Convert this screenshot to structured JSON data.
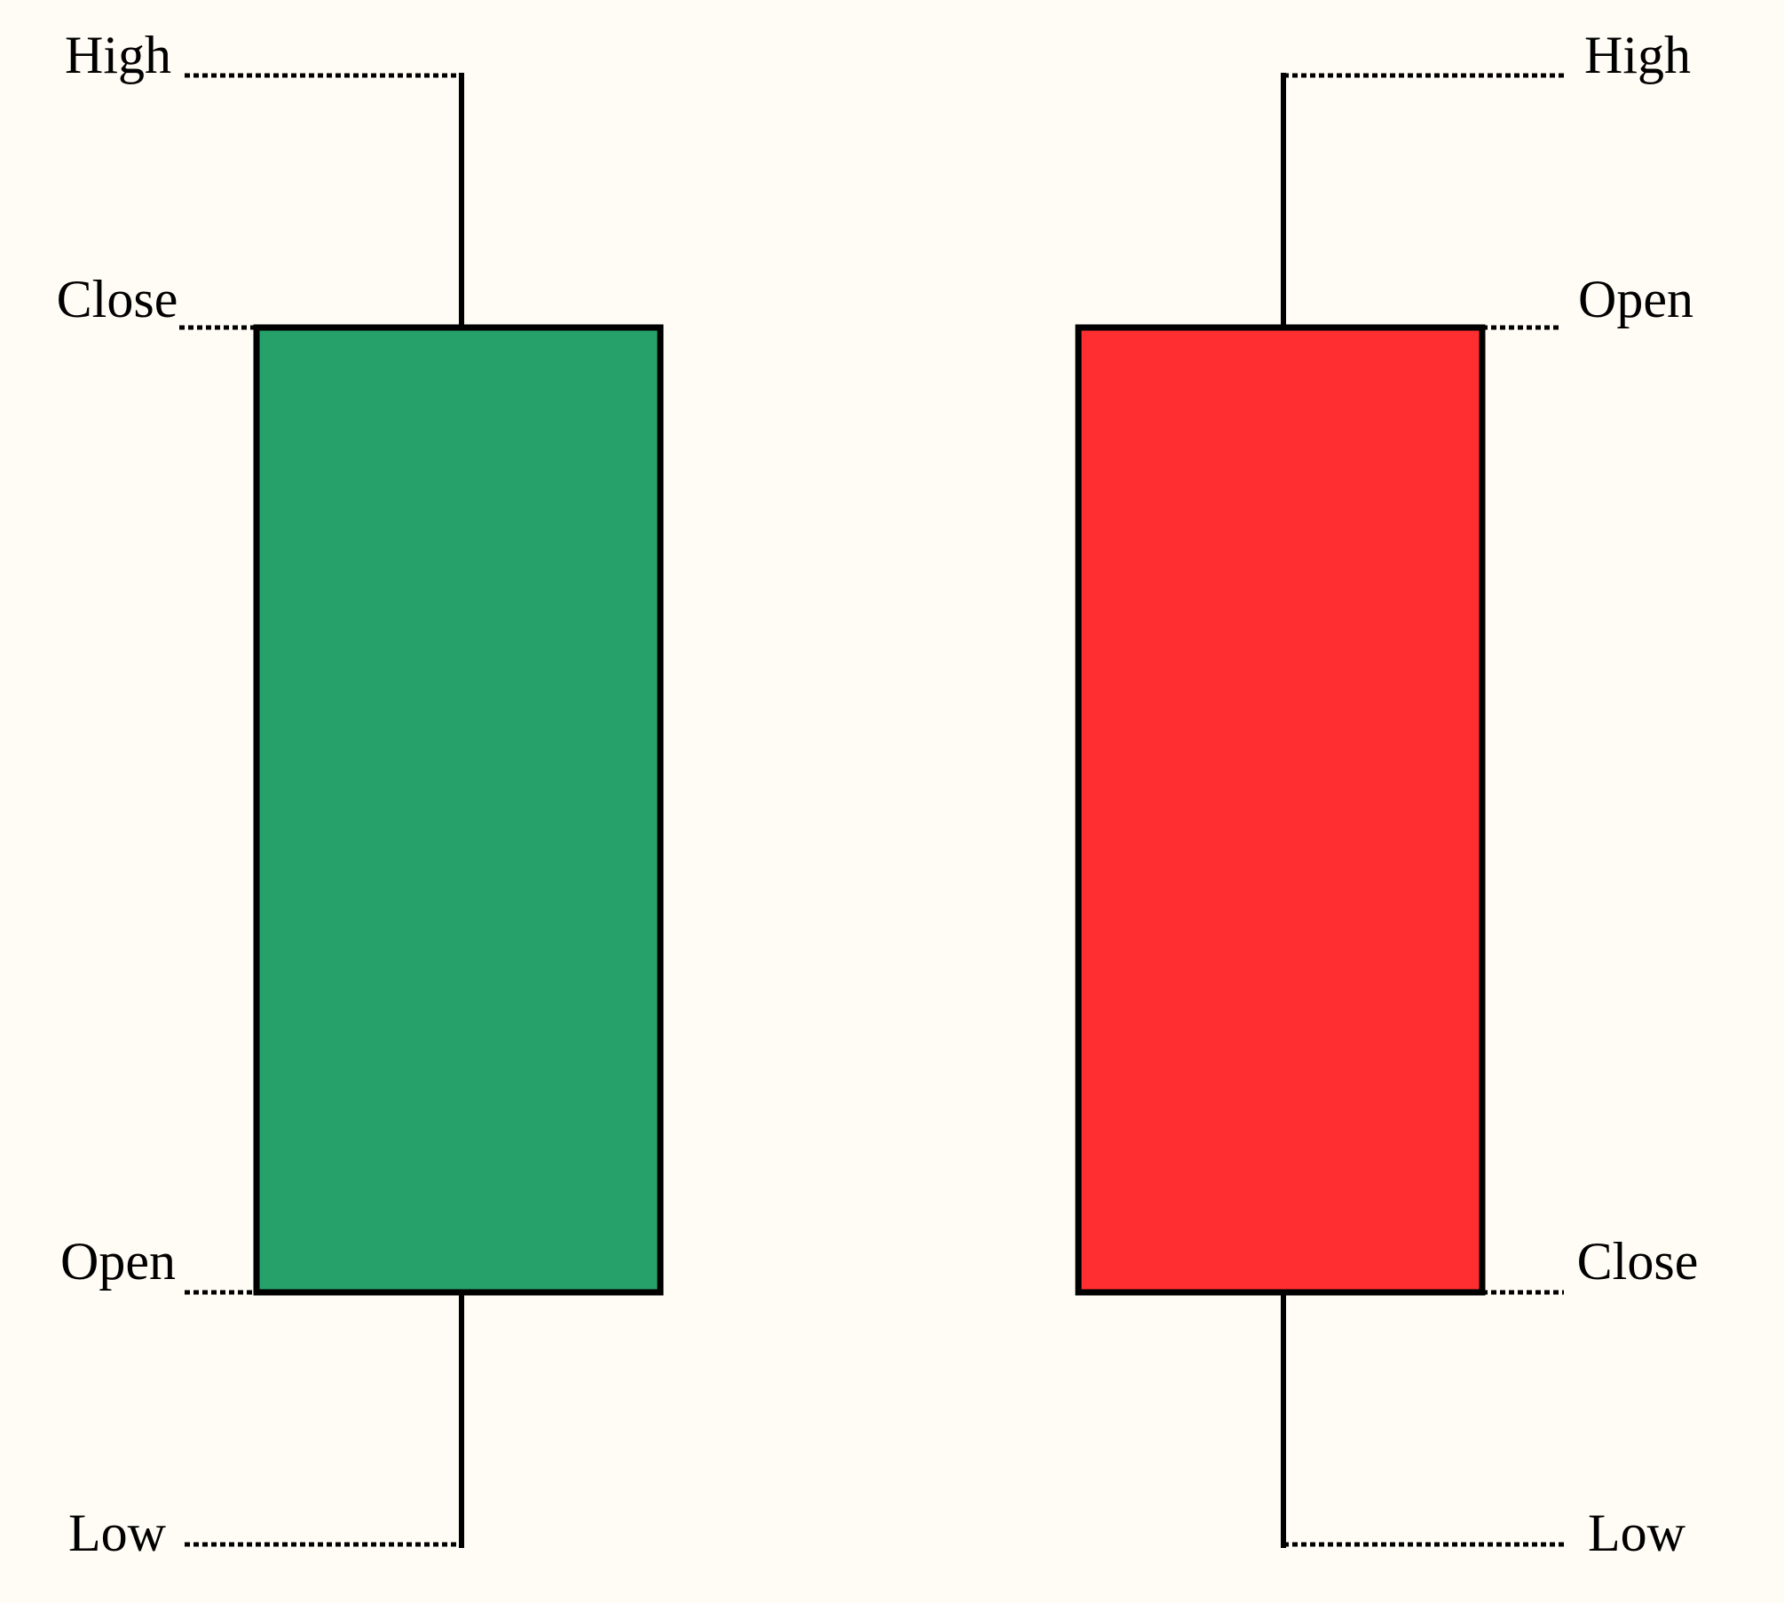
{
  "background_color": "#fefcf4",
  "candles": [
    {
      "kind": "bullish",
      "fill_color": "#27a16a",
      "labels": {
        "high": "High",
        "top_of_body": "Close",
        "bottom_of_body": "Open",
        "low": "Low"
      }
    },
    {
      "kind": "bearish",
      "fill_color": "#ff2e30",
      "labels": {
        "high": "High",
        "top_of_body": "Open",
        "bottom_of_body": "Close",
        "low": "Low"
      }
    }
  ]
}
